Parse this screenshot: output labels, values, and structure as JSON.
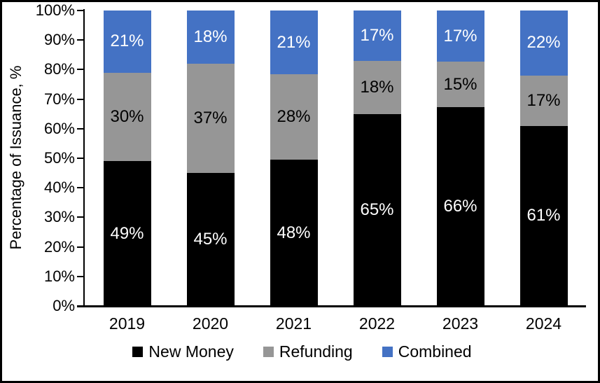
{
  "chart_data": {
    "type": "bar",
    "stacked": true,
    "title": "",
    "xlabel": "",
    "ylabel": "Percentage of Issuance, %",
    "categories": [
      "2019",
      "2020",
      "2021",
      "2022",
      "2023",
      "2024"
    ],
    "series": [
      {
        "name": "New Money",
        "color": "#000000",
        "label_color": "#ffffff",
        "values": [
          49,
          45,
          48,
          65,
          66,
          61
        ]
      },
      {
        "name": "Refunding",
        "color": "#969696",
        "label_color": "#000000",
        "values": [
          30,
          37,
          28,
          18,
          15,
          17
        ]
      },
      {
        "name": "Combined",
        "color": "#4472C4",
        "label_color": "#ffffff",
        "values": [
          21,
          18,
          21,
          17,
          17,
          22
        ]
      }
    ],
    "value_suffix": "%",
    "ylim": [
      0,
      100
    ],
    "yticks": [
      "0%",
      "10%",
      "20%",
      "30%",
      "40%",
      "50%",
      "60%",
      "70%",
      "80%",
      "90%",
      "100%"
    ],
    "grid": false,
    "legend_position": "bottom"
  }
}
